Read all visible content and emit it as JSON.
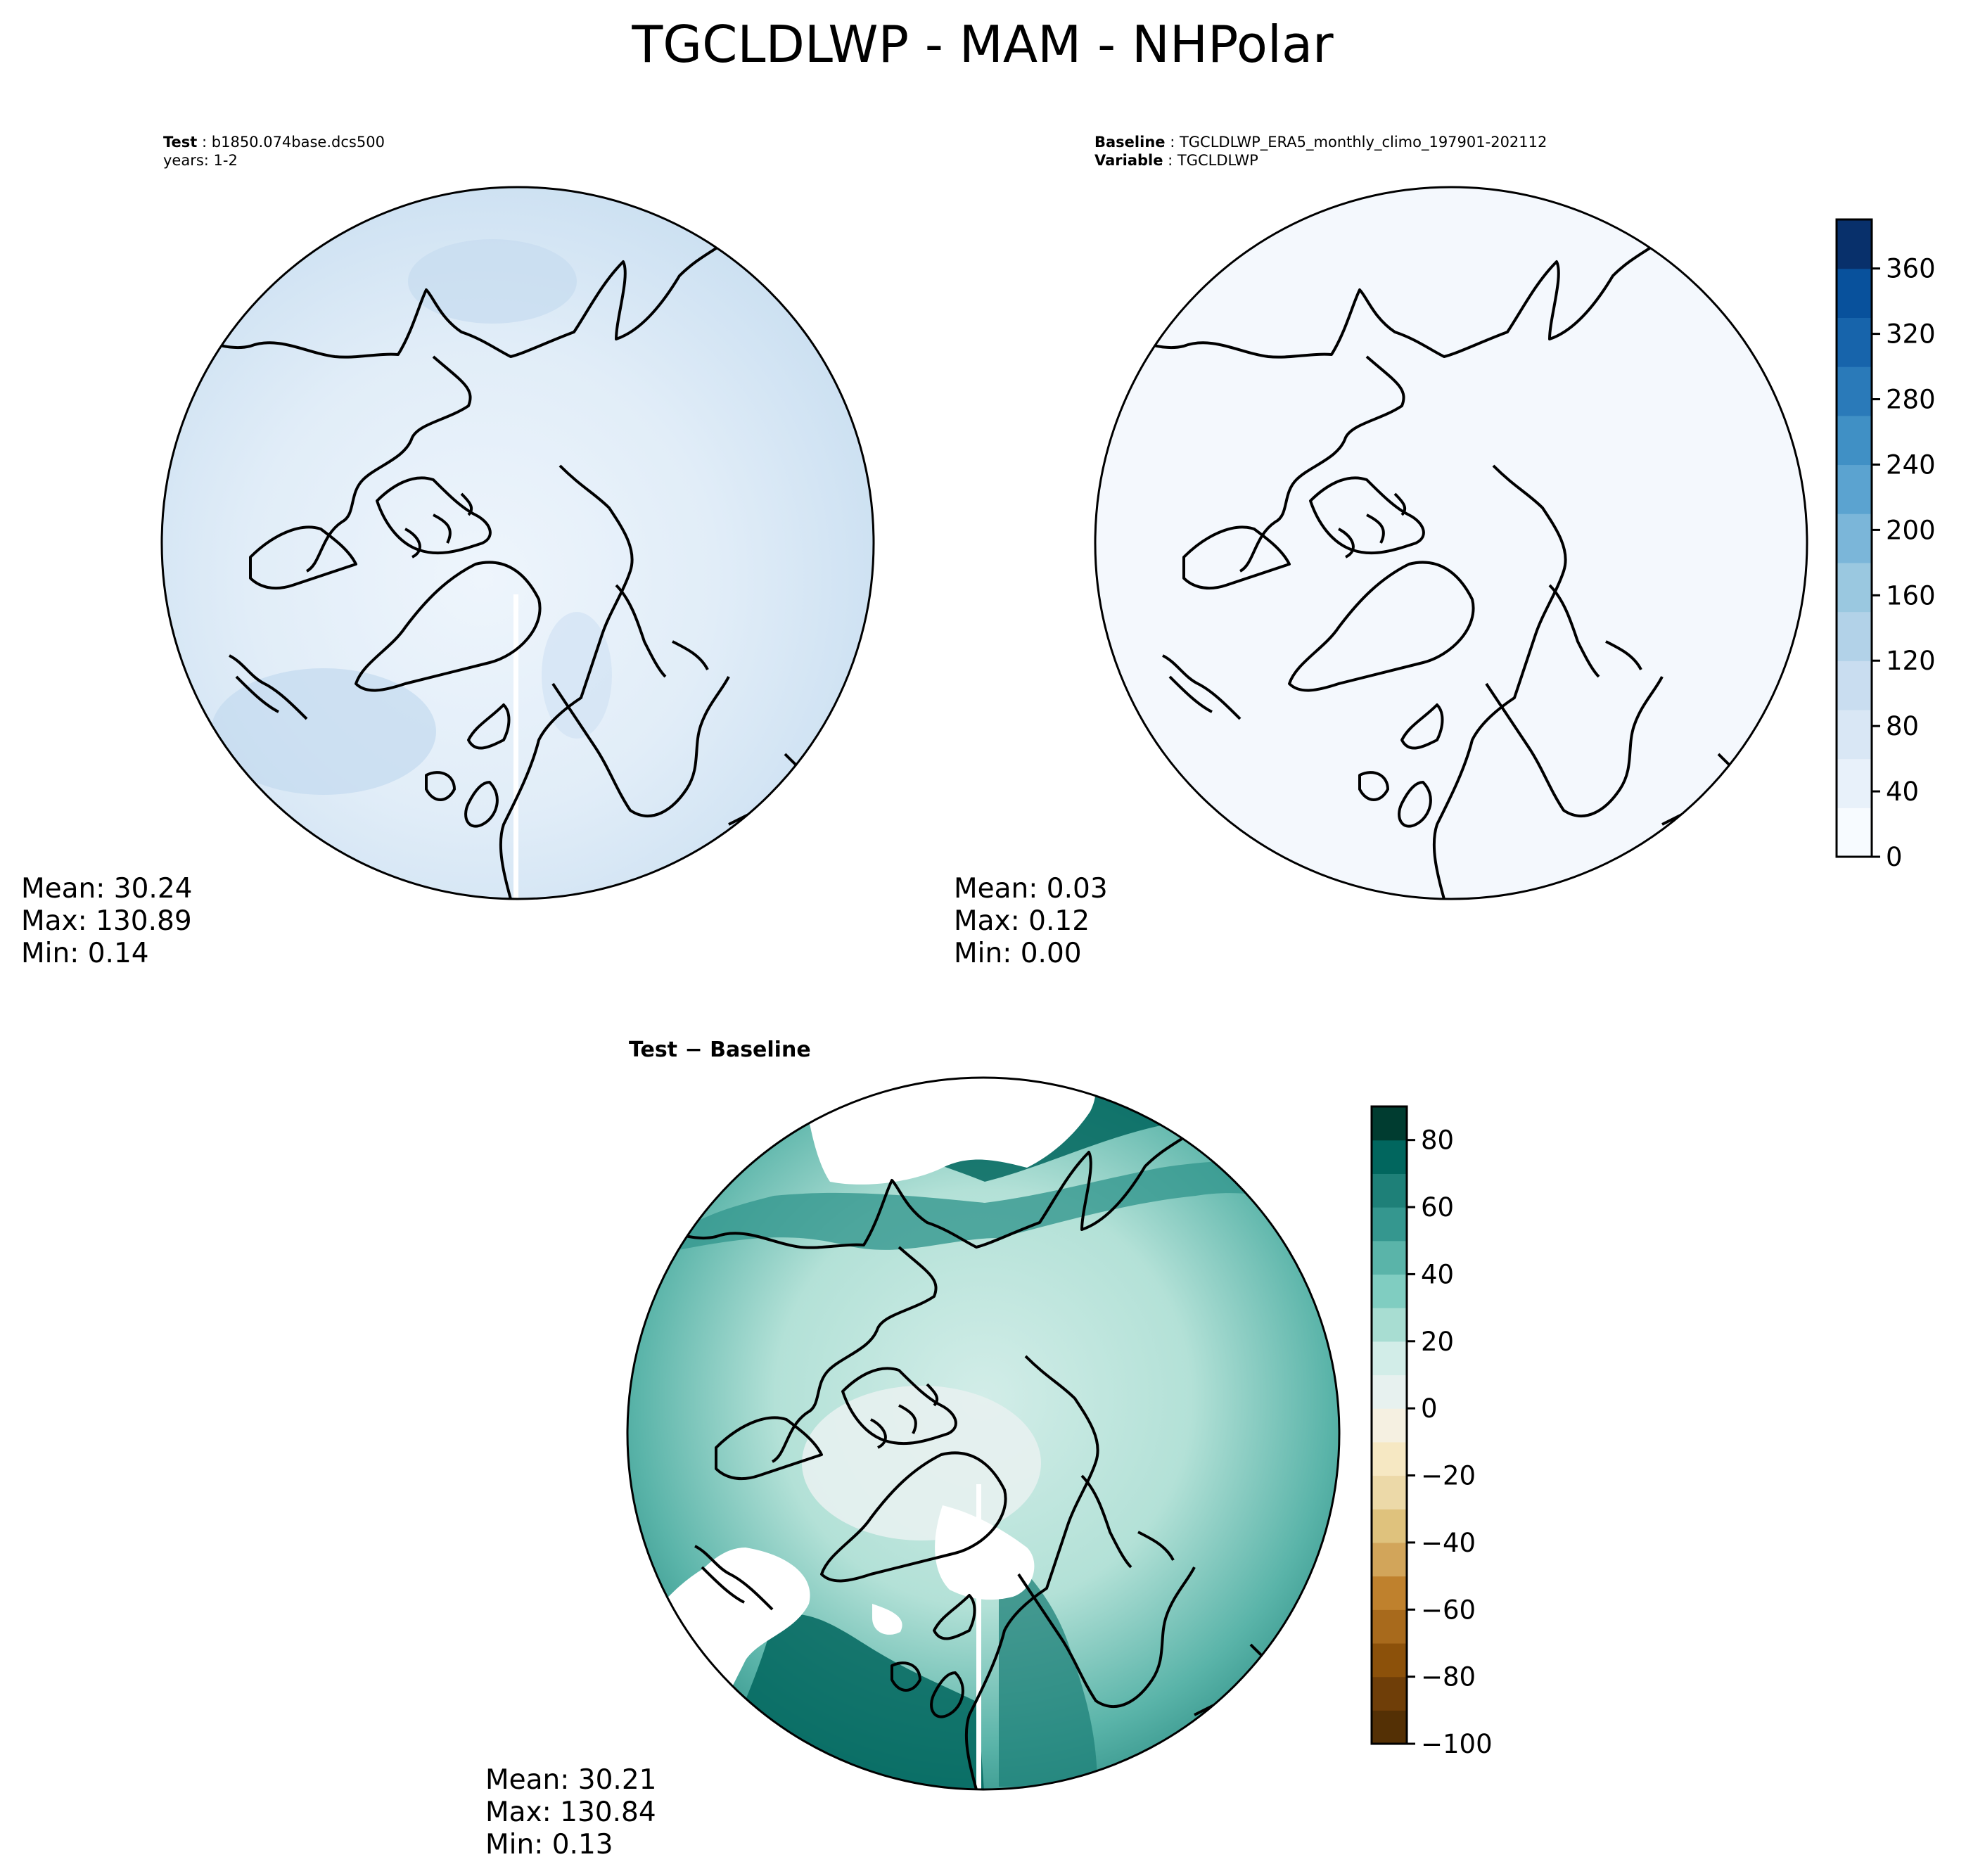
{
  "figure": {
    "title": "TGCLDLWP - MAM - NHPolar"
  },
  "panels": {
    "test": {
      "label": "Test",
      "case": "b1850.074base.dcs500",
      "years": "years: 1-2",
      "mean": "Mean: 30.24",
      "max": "Max: 130.89",
      "min": "Min:  0.14"
    },
    "baseline": {
      "label": "Baseline",
      "case": "TGCLDLWP_ERA5_monthly_climo_197901-202112",
      "variable_label": "Variable",
      "variable": "TGCLDLWP",
      "mean": "Mean:  0.03",
      "max": "Max:  0.12",
      "min": "Min:  0.00"
    },
    "diff": {
      "label_test": "Test",
      "label_sep": "−",
      "label_base": "Baseline",
      "mean": "Mean: 30.21",
      "max": "Max: 130.84",
      "min": "Min:  0.13"
    }
  },
  "colorbars": {
    "abs": {
      "ticks": [
        "0",
        "40",
        "80",
        "120",
        "160",
        "200",
        "240",
        "280",
        "320",
        "360"
      ],
      "tick_values": [
        0,
        40,
        80,
        120,
        160,
        200,
        240,
        280,
        320,
        360
      ],
      "range": [
        0,
        390
      ],
      "colors": [
        "#f7fbff",
        "#e8f1fa",
        "#d9e7f5",
        "#c9ddf0",
        "#b2d2e8",
        "#9ac8e0",
        "#7bb6d9",
        "#5ba3d0",
        "#4090c5",
        "#2a7ab9",
        "#1764ab",
        "#08519c",
        "#08306b"
      ]
    },
    "diff": {
      "ticks": [
        "80",
        "60",
        "40",
        "20",
        "0",
        "−20",
        "−40",
        "−60",
        "−80",
        "−100"
      ],
      "tick_values": [
        80,
        60,
        40,
        20,
        0,
        -20,
        -40,
        -60,
        -80,
        -100
      ],
      "range": [
        -100,
        90
      ],
      "colors": [
        "#543005",
        "#6f3e08",
        "#8c510a",
        "#a86a1c",
        "#bf812d",
        "#d2a55a",
        "#dfc27d",
        "#ecd9a8",
        "#f6e8c3",
        "#f5f0e1",
        "#e7f1ef",
        "#d2ede8",
        "#a8ddd2",
        "#80cdc1",
        "#5ab4a9",
        "#35978f",
        "#1e8078",
        "#01665e",
        "#003c30"
      ]
    }
  }
}
